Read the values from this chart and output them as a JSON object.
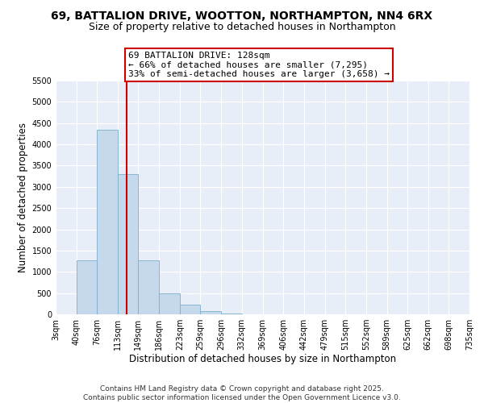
{
  "title": "69, BATTALION DRIVE, WOOTTON, NORTHAMPTON, NN4 6RX",
  "subtitle": "Size of property relative to detached houses in Northampton",
  "xlabel": "Distribution of detached houses by size in Northampton",
  "ylabel": "Number of detached properties",
  "background_color": "#e8eef8",
  "bar_color": "#c5d8ec",
  "bar_edge_color": "#7aafc9",
  "vline_x": 128,
  "vline_color": "#cc0000",
  "annotation_title": "69 BATTALION DRIVE: 128sqm",
  "annotation_line2": "← 66% of detached houses are smaller (7,295)",
  "annotation_line3": "33% of semi-detached houses are larger (3,658) →",
  "annotation_box_edge": "#cc0000",
  "bins": [
    3,
    40,
    76,
    113,
    149,
    186,
    223,
    259,
    296,
    332,
    369,
    406,
    442,
    479,
    515,
    552,
    589,
    625,
    662,
    698,
    735
  ],
  "counts": [
    0,
    1270,
    4350,
    3300,
    1280,
    500,
    230,
    80,
    20,
    5,
    2,
    0,
    0,
    0,
    0,
    0,
    0,
    0,
    0,
    0
  ],
  "ylim": [
    0,
    5500
  ],
  "yticks": [
    0,
    500,
    1000,
    1500,
    2000,
    2500,
    3000,
    3500,
    4000,
    4500,
    5000,
    5500
  ],
  "xtick_labels": [
    "3sqm",
    "40sqm",
    "76sqm",
    "113sqm",
    "149sqm",
    "186sqm",
    "223sqm",
    "259sqm",
    "296sqm",
    "332sqm",
    "369sqm",
    "406sqm",
    "442sqm",
    "479sqm",
    "515sqm",
    "552sqm",
    "589sqm",
    "625sqm",
    "662sqm",
    "698sqm",
    "735sqm"
  ],
  "footer_line1": "Contains HM Land Registry data © Crown copyright and database right 2025.",
  "footer_line2": "Contains public sector information licensed under the Open Government Licence v3.0.",
  "title_fontsize": 10,
  "subtitle_fontsize": 9,
  "axis_label_fontsize": 8.5,
  "tick_fontsize": 7,
  "annotation_fontsize": 8,
  "footer_fontsize": 6.5
}
